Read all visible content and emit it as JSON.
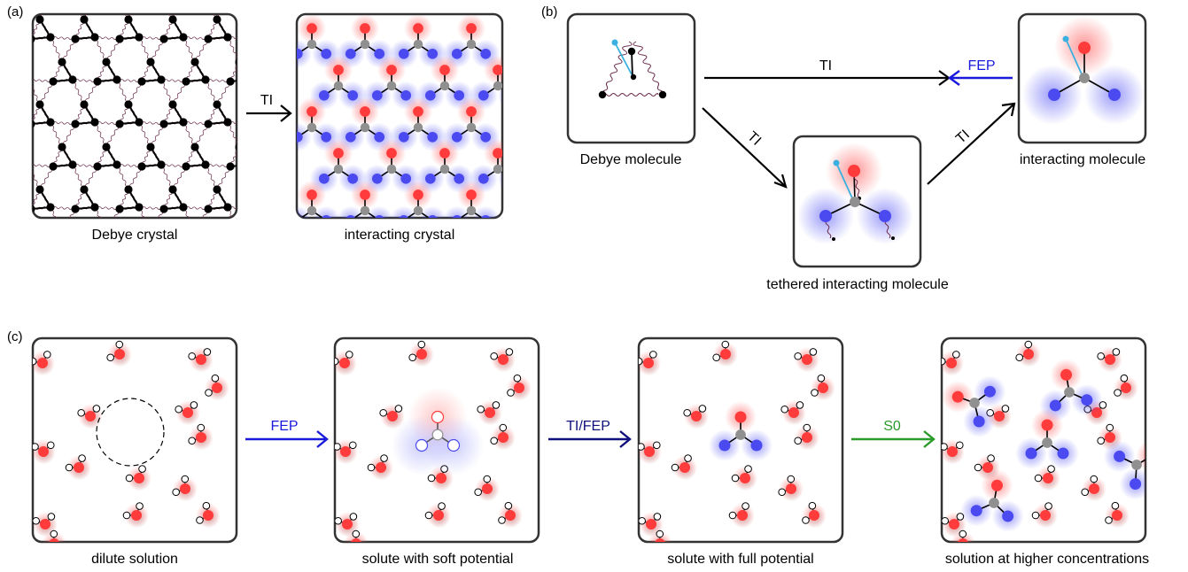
{
  "panels": {
    "a": {
      "label": "(a)",
      "caption_left": "Debye crystal",
      "caption_right": "interacting crystal",
      "arrow_label": "TI"
    },
    "b": {
      "label": "(b)",
      "caption_debye": "Debye molecule",
      "caption_tethered": "tethered interacting molecule",
      "caption_interacting": "interacting molecule",
      "arrow_top": "TI",
      "arrow_fep": "FEP",
      "arrow_down": "TI",
      "arrow_up": "TI"
    },
    "c": {
      "label": "(c)",
      "captions": [
        "dilute solution",
        "solute with soft potential",
        "solute with full potential",
        "solution at higher concentrations"
      ],
      "arrows": [
        {
          "label": "FEP",
          "color": "#1a1adc"
        },
        {
          "label": "TI/FEP",
          "color": "#10107a"
        },
        {
          "label": "S0",
          "color": "#2a9a2a"
        }
      ]
    }
  },
  "colors": {
    "oxygen": "#ff3b3b",
    "nitrogen": "#4a4af0",
    "carbon": "#909090",
    "tether": "#3ab0e0",
    "spring": "#6a2a4a",
    "fep_blue": "#1a1adc",
    "ti_black": "#000000"
  }
}
